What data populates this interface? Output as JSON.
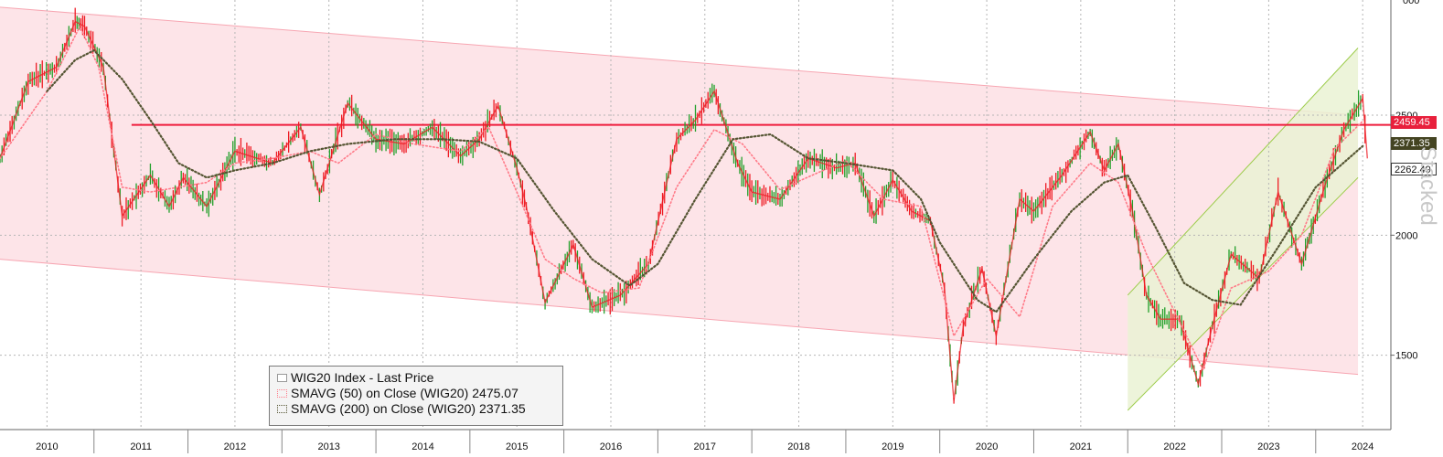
{
  "legend": {
    "items": [
      {
        "label": "WIG20 Index - Last Price",
        "value": "",
        "color": "#22a02a",
        "style": "solid"
      },
      {
        "label": "SMAVG (50)  on Close (WIG20)",
        "value": "2475.07",
        "color": "#ff7a88",
        "style": "dotted"
      },
      {
        "label": "SMAVG (200)  on Close (WIG20)",
        "value": "2371.35",
        "color": "#555533",
        "style": "dotted"
      }
    ]
  },
  "tags": [
    {
      "text": "2459.45",
      "bg": "#e8203c",
      "fg": "#ffffff"
    },
    {
      "text": "2371.35",
      "bg": "#444422",
      "fg": "#ffffff"
    },
    {
      "text": "2262.49",
      "bg": "#ffffff",
      "fg": "#111111"
    }
  ],
  "watermark": "Stacked",
  "colors": {
    "price_up": "#22a02a",
    "price_down": "#ee1c24",
    "ma50": "#ff7a88",
    "ma200": "#555533",
    "resistance": "#ee1c3c",
    "down_channel": "#fde4e8",
    "up_channel": "#eaf2d4"
  },
  "chart_data": {
    "type": "line",
    "title": "",
    "xlabel": "",
    "ylabel": "",
    "x_ticks": [
      "2010",
      "2011",
      "2012",
      "2013",
      "2014",
      "2015",
      "2016",
      "2017",
      "2018",
      "2019",
      "2020",
      "2021",
      "2022",
      "2023",
      "2024"
    ],
    "y_ticks": [
      1500,
      2000,
      2500
    ],
    "top_tick_partial": "000",
    "xlim": [
      2010.0,
      2024.8
    ],
    "ylim": [
      1190,
      2980
    ],
    "grid": true,
    "legend_position": "bottom-left",
    "horizontal_line": 2459.45,
    "series": [
      {
        "name": "WIG20 Index - Last Price",
        "x": [
          2010.0,
          2010.3,
          2010.6,
          2010.8,
          2010.9,
          2011.1,
          2011.3,
          2011.6,
          2011.8,
          2011.95,
          2012.2,
          2012.5,
          2012.9,
          2013.2,
          2013.4,
          2013.7,
          2014.0,
          2014.3,
          2014.6,
          2014.9,
          2015.1,
          2015.3,
          2015.5,
          2015.6,
          2015.8,
          2016.1,
          2016.3,
          2016.6,
          2016.9,
          2017.2,
          2017.4,
          2017.6,
          2017.85,
          2018.0,
          2018.3,
          2018.6,
          2018.9,
          2019.1,
          2019.3,
          2019.5,
          2019.7,
          2019.9,
          2020.05,
          2020.15,
          2020.25,
          2020.45,
          2020.6,
          2020.85,
          2021.0,
          2021.3,
          2021.6,
          2021.75,
          2021.9,
          2022.05,
          2022.2,
          2022.35,
          2022.55,
          2022.75,
          2022.9,
          2023.1,
          2023.4,
          2023.6,
          2023.85,
          2024.1,
          2024.3,
          2024.5,
          2024.55
        ],
        "values": [
          2320,
          2640,
          2700,
          2890,
          2870,
          2700,
          2080,
          2250,
          2120,
          2240,
          2120,
          2350,
          2300,
          2450,
          2170,
          2550,
          2400,
          2380,
          2450,
          2330,
          2400,
          2540,
          2280,
          2120,
          1720,
          1960,
          1700,
          1750,
          1880,
          2400,
          2480,
          2600,
          2300,
          2180,
          2150,
          2320,
          2280,
          2300,
          2080,
          2230,
          2100,
          2060,
          1780,
          1310,
          1620,
          1860,
          1580,
          2150,
          2100,
          2250,
          2430,
          2270,
          2380,
          2100,
          1750,
          1650,
          1650,
          1380,
          1620,
          1920,
          1820,
          2180,
          1880,
          2210,
          2440,
          2570,
          2320
        ]
      },
      {
        "name": "SMAVG (50)  on Close (WIG20)",
        "x": [
          2010.0,
          2010.5,
          2010.85,
          2011.05,
          2011.3,
          2011.6,
          2011.9,
          2012.2,
          2012.5,
          2012.9,
          2013.3,
          2013.6,
          2014.0,
          2014.4,
          2014.9,
          2015.2,
          2015.5,
          2015.8,
          2016.1,
          2016.4,
          2016.8,
          2017.2,
          2017.6,
          2017.9,
          2018.3,
          2018.7,
          2019.0,
          2019.4,
          2019.8,
          2020.15,
          2020.5,
          2020.85,
          2021.2,
          2021.6,
          2021.9,
          2022.2,
          2022.5,
          2022.8,
          2023.1,
          2023.5,
          2023.85,
          2024.2,
          2024.5
        ],
        "values": [
          2320,
          2600,
          2870,
          2700,
          2200,
          2180,
          2200,
          2220,
          2300,
          2320,
          2350,
          2300,
          2420,
          2380,
          2350,
          2450,
          2180,
          1900,
          1820,
          1760,
          1780,
          2200,
          2440,
          2380,
          2190,
          2260,
          2310,
          2150,
          2120,
          1580,
          1820,
          1660,
          2120,
          2300,
          2220,
          1920,
          1680,
          1440,
          1780,
          1850,
          2000,
          2360,
          2475
        ]
      },
      {
        "name": "SMAVG (200)  on Close (WIG20)",
        "x": [
          2010.5,
          2010.8,
          2011.0,
          2011.3,
          2011.6,
          2011.9,
          2012.2,
          2012.5,
          2012.9,
          2013.3,
          2013.7,
          2014.2,
          2014.7,
          2015.1,
          2015.5,
          2015.9,
          2016.3,
          2016.7,
          2017.0,
          2017.4,
          2017.8,
          2018.2,
          2018.6,
          2019.0,
          2019.5,
          2019.8,
          2020.0,
          2020.4,
          2020.6,
          2021.0,
          2021.4,
          2021.75,
          2022.0,
          2022.3,
          2022.6,
          2022.9,
          2023.2,
          2023.6,
          2024.0,
          2024.5
        ],
        "values": [
          2600,
          2730,
          2770,
          2650,
          2480,
          2300,
          2240,
          2270,
          2300,
          2350,
          2380,
          2400,
          2400,
          2390,
          2320,
          2100,
          1900,
          1790,
          1880,
          2150,
          2400,
          2420,
          2320,
          2300,
          2270,
          2150,
          1970,
          1730,
          1680,
          1900,
          2100,
          2220,
          2250,
          2030,
          1800,
          1730,
          1710,
          1950,
          2200,
          2371.35
        ]
      }
    ],
    "overlays": [
      {
        "kind": "channel",
        "x": [
          2010.0,
          2024.45
        ],
        "upper": [
          2950,
          2500
        ],
        "lower": [
          1900,
          1420
        ]
      },
      {
        "kind": "channel",
        "x": [
          2022.0,
          2024.45
        ],
        "upper": [
          1750,
          2780
        ],
        "lower": [
          1270,
          2240
        ]
      }
    ]
  }
}
